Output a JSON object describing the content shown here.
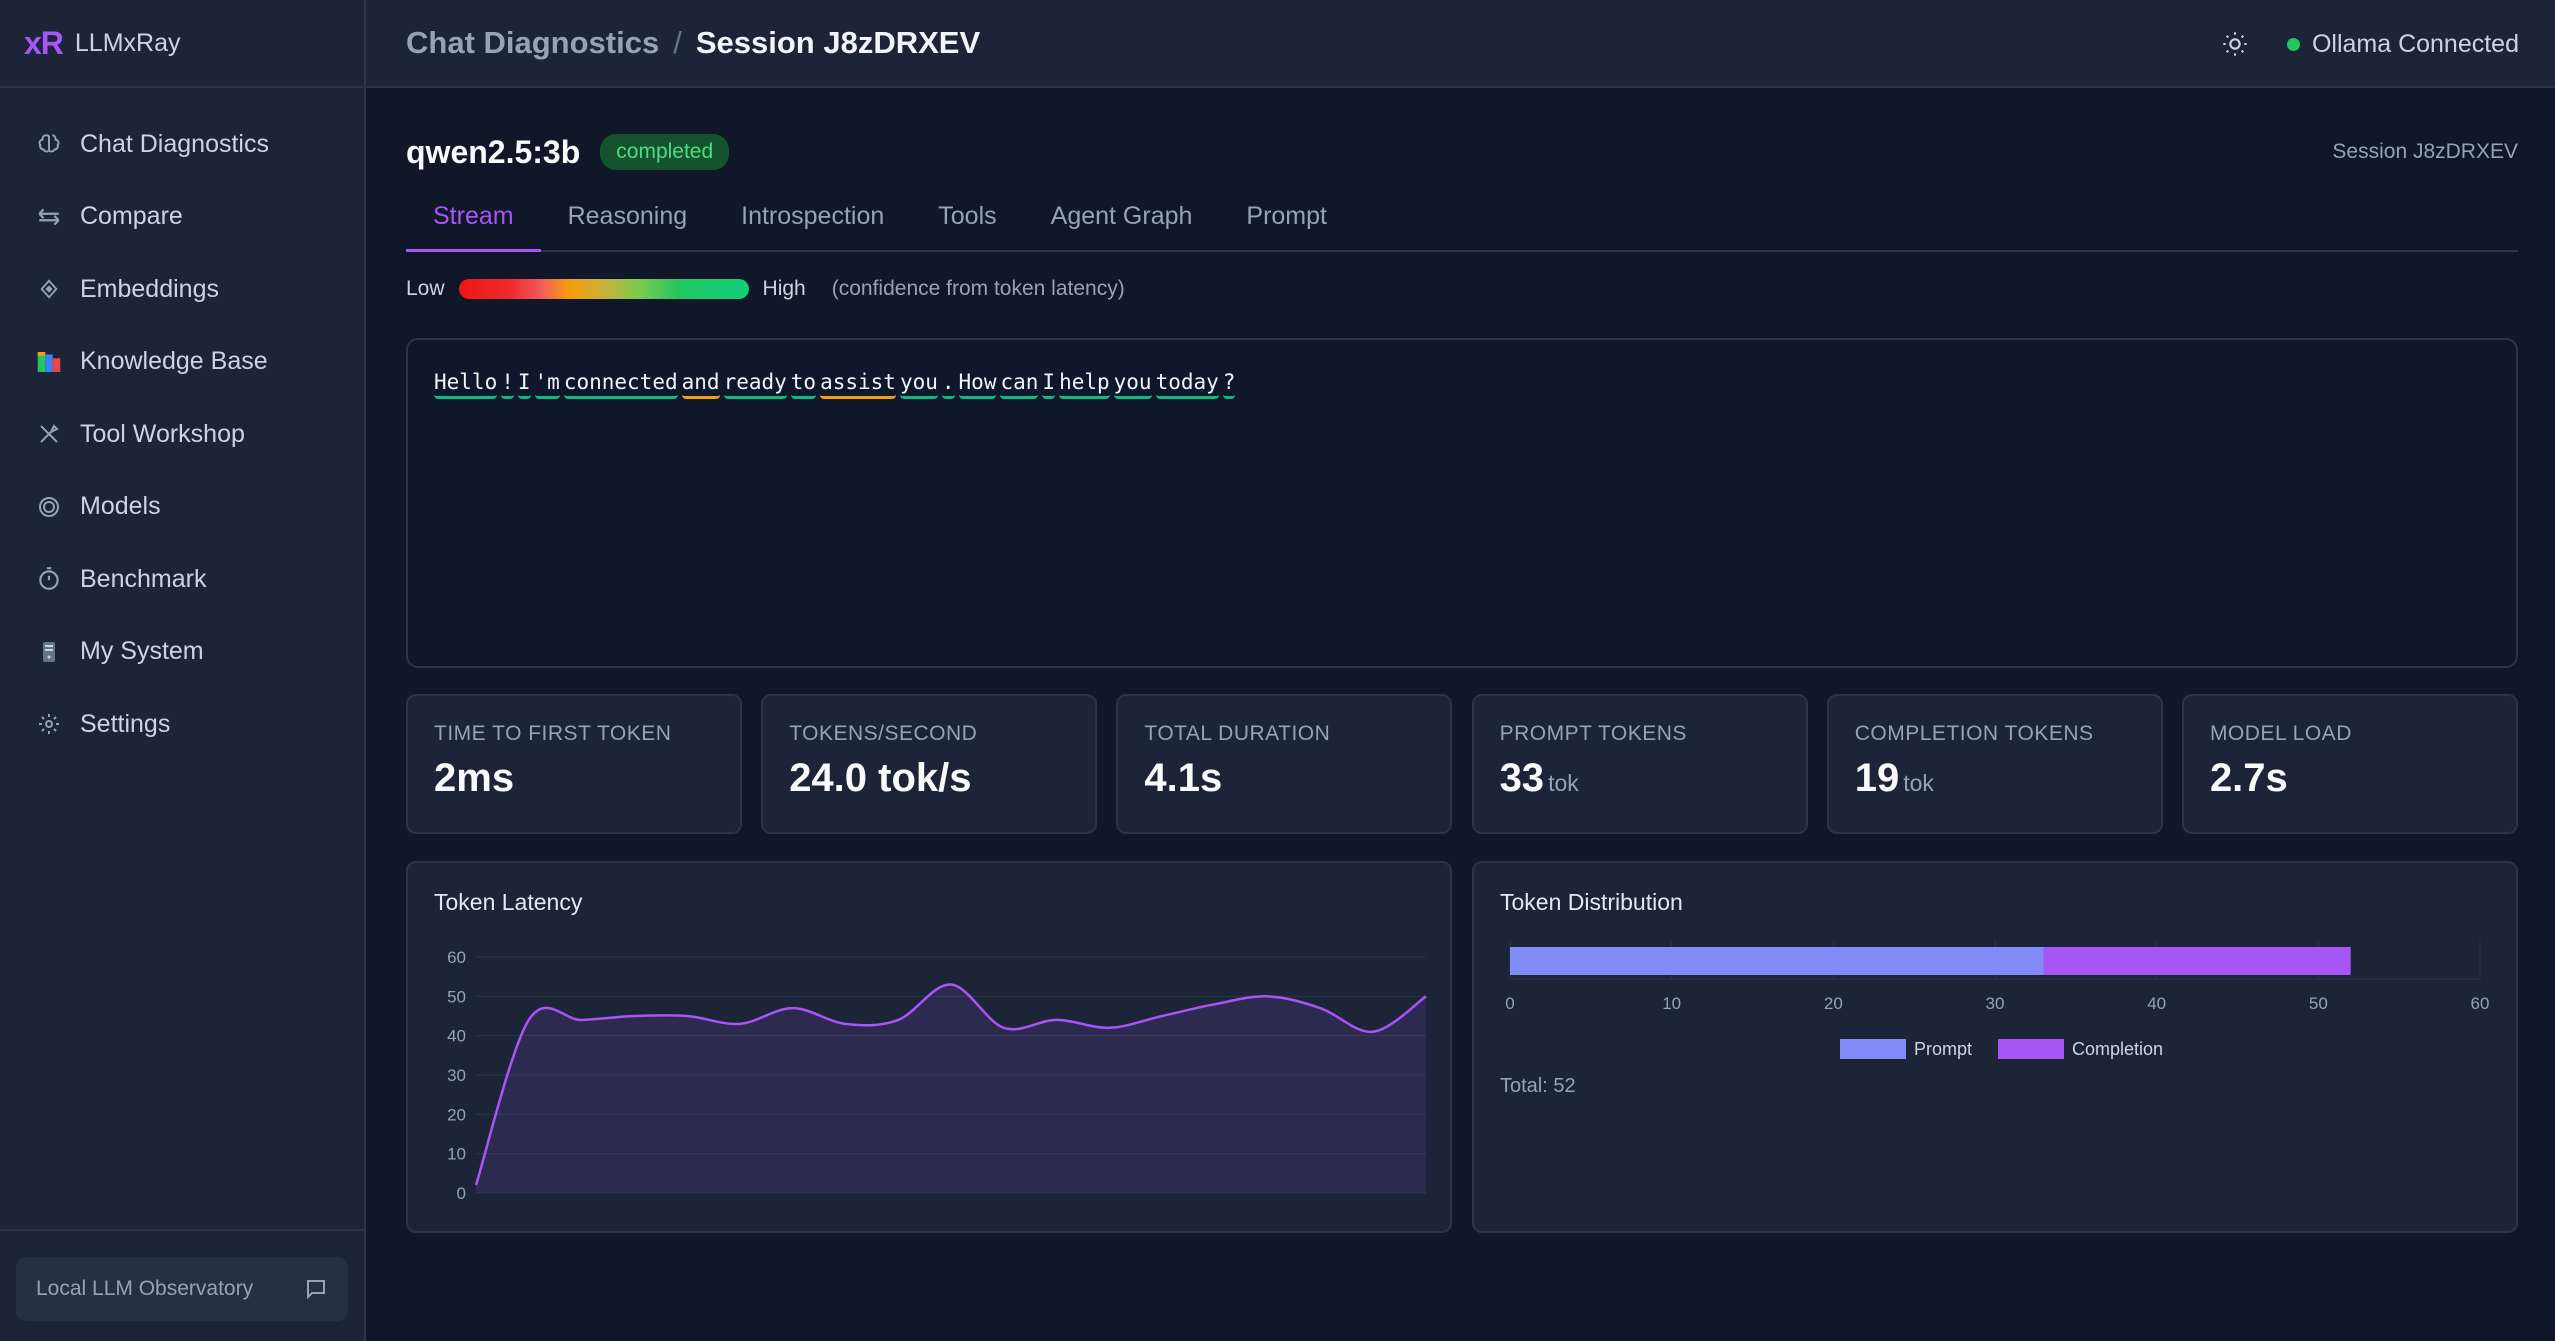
{
  "app": {
    "logo": "xR",
    "name": "LLMxRay"
  },
  "sidebar": {
    "items": [
      {
        "label": "Chat Diagnostics",
        "icon": "brain-icon"
      },
      {
        "label": "Compare",
        "icon": "arrows-horizontal-icon"
      },
      {
        "label": "Embeddings",
        "icon": "diamond-icon"
      },
      {
        "label": "Knowledge Base",
        "icon": "books-icon"
      },
      {
        "label": "Tool Workshop",
        "icon": "tools-icon"
      },
      {
        "label": "Models",
        "icon": "target-icon"
      },
      {
        "label": "Benchmark",
        "icon": "stopwatch-icon"
      },
      {
        "label": "My System",
        "icon": "computer-icon"
      },
      {
        "label": "Settings",
        "icon": "gear-icon"
      }
    ],
    "footer": {
      "label": "Local LLM Observatory",
      "icon": "chat-bubble-icon"
    }
  },
  "header": {
    "breadcrumb_root": "Chat Diagnostics",
    "breadcrumb_sep": "/",
    "breadcrumb_current": "Session J8zDRXEV",
    "status_text": "Ollama Connected",
    "status_color": "#22c55e"
  },
  "session": {
    "model": "qwen2.5:3b",
    "status": "completed",
    "session_label": "Session J8zDRXEV"
  },
  "tabs": [
    "Stream",
    "Reasoning",
    "Introspection",
    "Tools",
    "Agent Graph",
    "Prompt"
  ],
  "active_tab": "Stream",
  "confidence_legend": {
    "low": "Low",
    "high": "High",
    "note": "(confidence from token latency)"
  },
  "stream": {
    "tokens": [
      {
        "t": "Hello",
        "c": "high"
      },
      {
        "t": "!",
        "c": "high"
      },
      {
        "t": "I",
        "c": "high"
      },
      {
        "t": "'m",
        "c": "high"
      },
      {
        "t": "connected",
        "c": "high"
      },
      {
        "t": "and",
        "c": "mid"
      },
      {
        "t": "ready",
        "c": "high"
      },
      {
        "t": "to",
        "c": "high"
      },
      {
        "t": "assist",
        "c": "mid"
      },
      {
        "t": "you",
        "c": "high"
      },
      {
        "t": ".",
        "c": "high"
      },
      {
        "t": "How",
        "c": "high"
      },
      {
        "t": "can",
        "c": "high"
      },
      {
        "t": "I",
        "c": "high"
      },
      {
        "t": "help",
        "c": "high"
      },
      {
        "t": "you",
        "c": "high"
      },
      {
        "t": "today",
        "c": "high"
      },
      {
        "t": "?",
        "c": "high"
      }
    ]
  },
  "stats": [
    {
      "label": "Time to First Token",
      "value": "2ms",
      "unit": ""
    },
    {
      "label": "Tokens/Second",
      "value": "24.0 tok/s",
      "unit": ""
    },
    {
      "label": "Total Duration",
      "value": "4.1s",
      "unit": ""
    },
    {
      "label": "Prompt Tokens",
      "value": "33",
      "unit": "tok"
    },
    {
      "label": "Completion Tokens",
      "value": "19",
      "unit": "tok"
    },
    {
      "label": "Model Load",
      "value": "2.7s",
      "unit": ""
    }
  ],
  "chart_data": [
    {
      "type": "area",
      "title": "Token Latency",
      "xlabel": "",
      "ylabel": "",
      "ylim": [
        0,
        60
      ],
      "yticks": [
        0,
        10,
        20,
        30,
        40,
        50,
        60
      ],
      "grid": true,
      "color": "#a855f7",
      "values": [
        2,
        44,
        44,
        45,
        45,
        43,
        47,
        43,
        44,
        53,
        42,
        44,
        42,
        45,
        48,
        50,
        47,
        41,
        50
      ]
    },
    {
      "type": "bar",
      "title": "Token Distribution",
      "orientation": "horizontal",
      "stacked": true,
      "xlim": [
        0,
        60
      ],
      "xticks": [
        0,
        10,
        20,
        30,
        40,
        50,
        60
      ],
      "grid": true,
      "legend": "bottom",
      "series": [
        {
          "name": "Prompt",
          "values": [
            33
          ],
          "color": "#818cf8"
        },
        {
          "name": "Completion",
          "values": [
            19
          ],
          "color": "#a855f7"
        }
      ],
      "total_label": "Total: 52"
    }
  ]
}
